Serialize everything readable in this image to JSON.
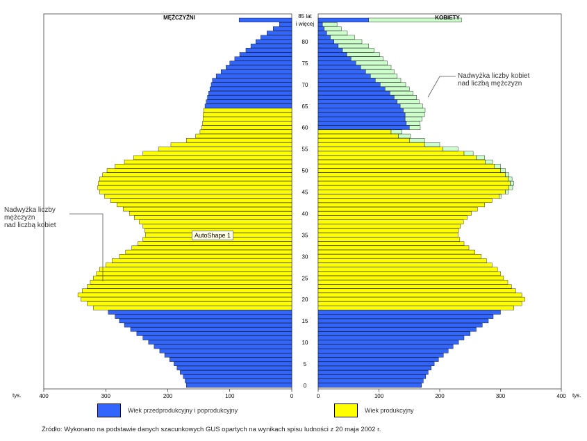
{
  "chart_data": {
    "type": "bar",
    "orientation": "horizontal-population-pyramid",
    "unit": "tys.",
    "left_title": "MĘŻCZYŹNI",
    "right_title": "KOBIETY",
    "top_age_label_1": "85 lat",
    "top_age_label_2": "i więcej",
    "ages": [
      0,
      1,
      2,
      3,
      4,
      5,
      6,
      7,
      8,
      9,
      10,
      11,
      12,
      13,
      14,
      15,
      16,
      17,
      18,
      19,
      20,
      21,
      22,
      23,
      24,
      25,
      26,
      27,
      28,
      29,
      30,
      31,
      32,
      33,
      34,
      35,
      36,
      37,
      38,
      39,
      40,
      41,
      42,
      43,
      44,
      45,
      46,
      47,
      48,
      49,
      50,
      51,
      52,
      53,
      54,
      55,
      56,
      57,
      58,
      59,
      60,
      61,
      62,
      63,
      64,
      65,
      66,
      67,
      68,
      69,
      70,
      71,
      72,
      73,
      74,
      75,
      76,
      77,
      78,
      79,
      80,
      81,
      82,
      83,
      84,
      85
    ],
    "age_ticks": [
      0,
      5,
      10,
      15,
      20,
      25,
      30,
      35,
      40,
      45,
      50,
      55,
      60,
      65,
      70,
      75,
      80
    ],
    "x_ticks": [
      0,
      100,
      200,
      300,
      400
    ],
    "xlim": [
      0,
      400
    ],
    "men": [
      170,
      172,
      175,
      180,
      185,
      190,
      197,
      205,
      213,
      222,
      231,
      240,
      250,
      260,
      270,
      278,
      285,
      296,
      320,
      330,
      340,
      345,
      338,
      330,
      325,
      320,
      315,
      310,
      300,
      290,
      278,
      268,
      258,
      248,
      240,
      236,
      237,
      240,
      246,
      254,
      262,
      272,
      282,
      292,
      302,
      310,
      313,
      312,
      310,
      305,
      298,
      285,
      270,
      255,
      240,
      215,
      195,
      170,
      155,
      148,
      145,
      144,
      143,
      143,
      142,
      140,
      138,
      136,
      134,
      132,
      130,
      128,
      122,
      114,
      106,
      100,
      92,
      84,
      74,
      66,
      58,
      50,
      40,
      30,
      20,
      85
    ],
    "men_working_age": [
      18,
      64
    ],
    "women": [
      170,
      173,
      177,
      181,
      186,
      191,
      198,
      206,
      214,
      222,
      231,
      240,
      250,
      260,
      270,
      280,
      288,
      300,
      322,
      335,
      340,
      335,
      325,
      318,
      312,
      305,
      300,
      295,
      286,
      277,
      268,
      258,
      248,
      240,
      233,
      230,
      231,
      234,
      239,
      245,
      252,
      262,
      274,
      286,
      298,
      308,
      314,
      316,
      313,
      308,
      300,
      290,
      275,
      260,
      240,
      205,
      175,
      150,
      132,
      120,
      150,
      145,
      143,
      143,
      140,
      135,
      130,
      125,
      118,
      110,
      102,
      94,
      86,
      78,
      70,
      62,
      54,
      47,
      40,
      33,
      26,
      20,
      14,
      10,
      7,
      83
    ],
    "women_excess": [
      0,
      0,
      0,
      0,
      0,
      0,
      0,
      0,
      0,
      0,
      0,
      0,
      0,
      0,
      0,
      0,
      0,
      0,
      0,
      0,
      0,
      0,
      0,
      0,
      0,
      0,
      0,
      0,
      0,
      0,
      0,
      0,
      0,
      0,
      0,
      0,
      0,
      0,
      0,
      0,
      0,
      0,
      0,
      0,
      3,
      5,
      6,
      6,
      6,
      6,
      8,
      10,
      12,
      14,
      15,
      25,
      25,
      25,
      20,
      18,
      18,
      22,
      28,
      32,
      36,
      37,
      36,
      37,
      38,
      40,
      42,
      42,
      44,
      47,
      50,
      52,
      53,
      54,
      52,
      50,
      46,
      40,
      34,
      28,
      24,
      153
    ],
    "women_working_age": [
      18,
      59
    ],
    "colors": {
      "pre_post": "#3366ff",
      "working": "#ffff00",
      "excess": "#ccffcc"
    }
  },
  "annotations": {
    "women_excess": [
      "Nadwyżka liczby kobiet",
      "nad liczbą mężczyzn"
    ],
    "men_excess": [
      "Nadwyżka liczby",
      "mężczyzn",
      "nad liczbą kobiet"
    ],
    "tooltip": "AutoShape 1"
  },
  "legend": {
    "pre_post": "Wiek przedprodukcyjny i poprodukcyjny",
    "working": "Wiek produkcyjny"
  },
  "source": "Źródło: Wykonano na podstawie danych szacunkowych GUS opartych na wynikach spisu ludności z 20 maja 2002 r."
}
